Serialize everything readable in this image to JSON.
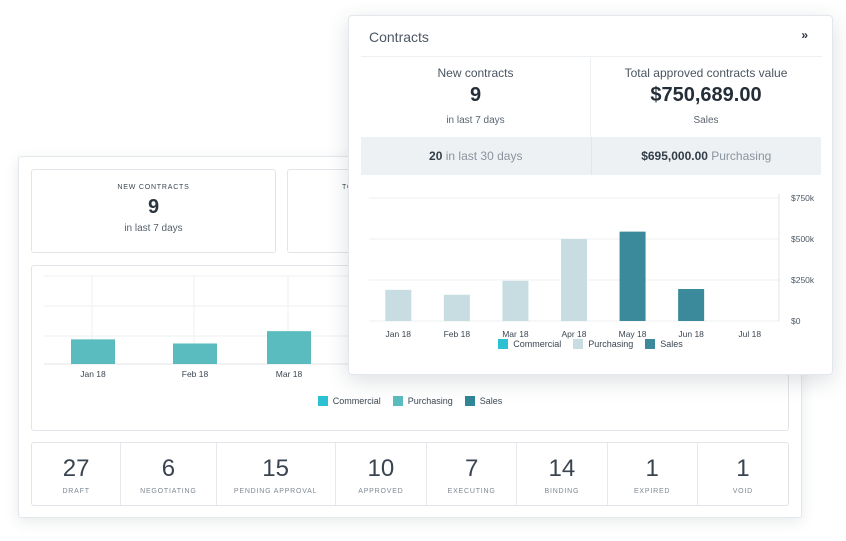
{
  "back": {
    "stat1": {
      "label": "NEW CONTRACTS",
      "value": "9",
      "sub": "in last 7 days"
    },
    "stat2": {
      "label_fragment": "TO"
    },
    "legend": [
      {
        "name": "Commercial",
        "color": "#2bc1d3"
      },
      {
        "name": "Purchasing",
        "color": "#5bbcbf"
      },
      {
        "name": "Sales",
        "color": "#2f8697"
      }
    ],
    "statuses": [
      {
        "count": "27",
        "label": "DRAFT"
      },
      {
        "count": "6",
        "label": "NEGOTIATING"
      },
      {
        "count": "15",
        "label": "PENDING APPROVAL"
      },
      {
        "count": "10",
        "label": "APPROVED"
      },
      {
        "count": "7",
        "label": "EXECUTING"
      },
      {
        "count": "14",
        "label": "BINDING"
      },
      {
        "count": "1",
        "label": "EXPIRED"
      },
      {
        "count": "1",
        "label": "VOID"
      }
    ]
  },
  "front": {
    "title": "Contracts",
    "expand_icon": "double-chevron-right-icon",
    "expand_glyph": "»",
    "new_contracts": {
      "heading": "New contracts",
      "value": "9",
      "sub": "in last 7 days"
    },
    "approved_value": {
      "heading": "Total approved contracts value",
      "value": "$750,689.00",
      "sub": "Sales"
    },
    "strip_left": {
      "bold": "20",
      "text": " in last 30 days"
    },
    "strip_right": {
      "bold": "$695,000.00",
      "text": " Purchasing"
    },
    "legend": [
      {
        "name": "Commercial",
        "color": "#2bc1d3"
      },
      {
        "name": "Purchasing",
        "color": "#c7dde1"
      },
      {
        "name": "Sales",
        "color": "#3a8a9b"
      }
    ]
  },
  "chart_data": [
    {
      "type": "bar",
      "categories": [
        "Jan 18",
        "Feb 18",
        "Mar 18",
        "Apr 18",
        "May 18",
        "Jun 18",
        "Jul 18"
      ],
      "series": [
        {
          "name": "Commercial",
          "values": [
            0,
            0,
            0,
            0,
            0,
            0,
            0
          ]
        },
        {
          "name": "Purchasing",
          "values": [
            190000,
            160000,
            245000,
            500000,
            0,
            0,
            0
          ]
        },
        {
          "name": "Sales",
          "values": [
            0,
            0,
            0,
            0,
            545000,
            195000,
            0
          ]
        }
      ],
      "yticks": [
        "$750k",
        "$500k",
        "$250k",
        "$0"
      ],
      "ylim": [
        0,
        750000
      ],
      "legend": "bottom"
    },
    {
      "type": "bar",
      "categories": [
        "Jan 18",
        "Feb 18",
        "Mar 18",
        "Apr 18",
        "May 18",
        "Jun 18",
        "Jul 18"
      ],
      "series": [
        {
          "name": "Purchasing",
          "values": [
            210000,
            175000,
            280000,
            0,
            0,
            0,
            0
          ]
        }
      ],
      "ylim": [
        0,
        750000
      ],
      "legend": "bottom"
    }
  ]
}
